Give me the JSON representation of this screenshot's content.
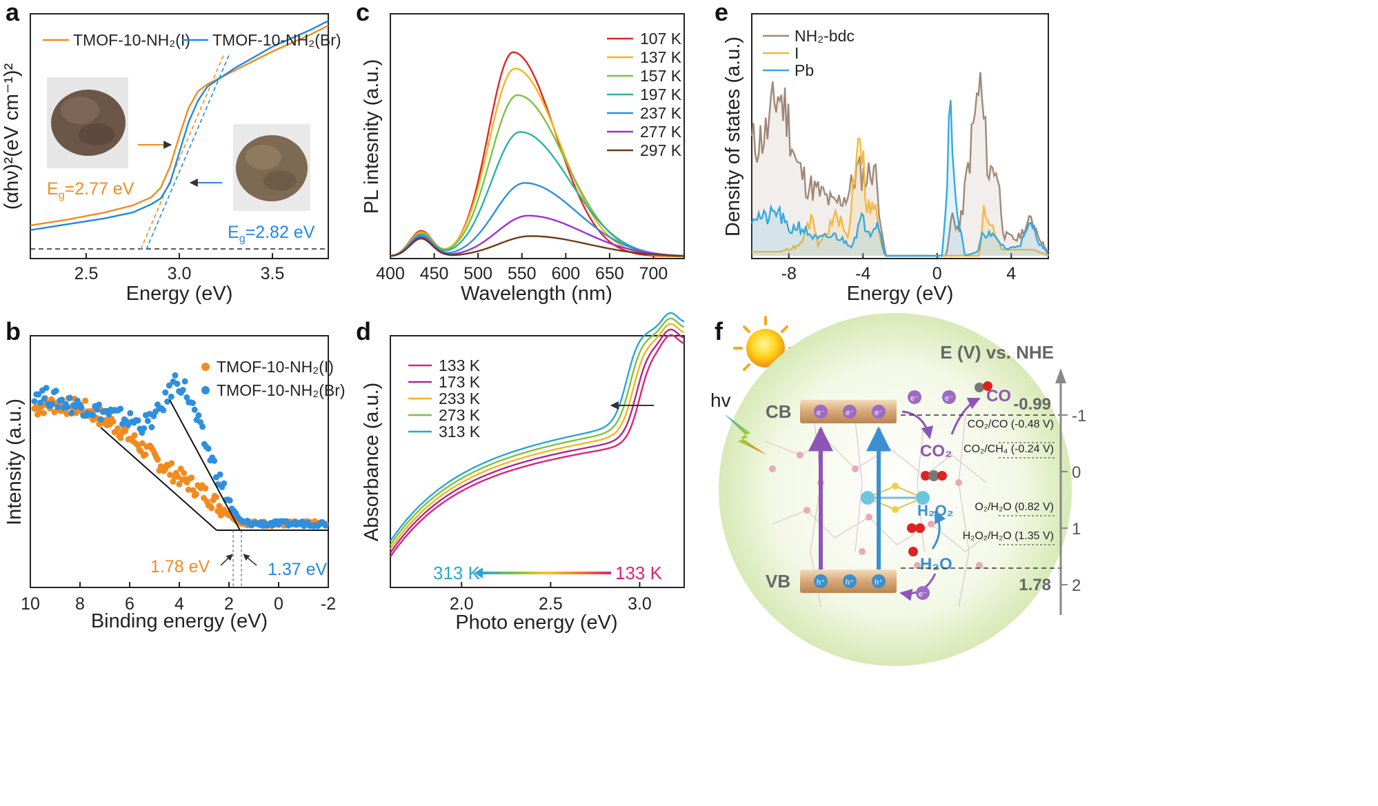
{
  "chart_data": [
    {
      "panel": "a",
      "type": "line",
      "xlabel": "Energy (eV)",
      "ylabel": "(αhν)²(eV cm⁻¹)²",
      "xlim": [
        2.2,
        3.8
      ],
      "ylim": [
        0,
        100
      ],
      "xticks": [
        "2.5",
        "3.0",
        "3.5"
      ],
      "xtick_values": [
        2.5,
        3.0,
        3.5
      ],
      "legend_position": "top",
      "colors": {
        "I": "#f28a1e",
        "Br": "#1e88e5"
      },
      "series": [
        {
          "name": "TMOF-10-NH₂(I)",
          "x": [
            2.2,
            2.4,
            2.6,
            2.75,
            2.85,
            2.9,
            2.95,
            3.0,
            3.05,
            3.1,
            3.15,
            3.3,
            3.5,
            3.7,
            3.8
          ],
          "y": [
            10,
            12.5,
            15.5,
            18.5,
            22,
            26,
            35,
            48,
            60,
            67,
            70,
            76,
            84,
            91,
            95
          ]
        },
        {
          "name": "TMOF-10-NH₂(Br)",
          "x": [
            2.2,
            2.4,
            2.6,
            2.75,
            2.85,
            2.9,
            2.95,
            3.0,
            3.05,
            3.1,
            3.15,
            3.3,
            3.5,
            3.7,
            3.8
          ],
          "y": [
            8,
            10.5,
            13,
            15.5,
            19,
            21.5,
            28,
            41,
            54,
            63,
            69,
            77,
            86,
            93,
            97
          ]
        }
      ],
      "annotations": [
        {
          "prefix": "E",
          "sub": "g",
          "value": "=2.77 eV"
        },
        {
          "prefix": "E",
          "sub": "g",
          "value": "=2.82 eV"
        }
      ]
    },
    {
      "panel": "b",
      "type": "scatter",
      "xlabel": "Binding energy (eV)",
      "ylabel": "Intensity (a.u.)",
      "xlim": [
        10,
        -2
      ],
      "xticks": [
        "10",
        "8",
        "6",
        "4",
        "2",
        "0",
        "-2"
      ],
      "xtick_values": [
        10,
        8,
        6,
        4,
        2,
        0,
        -2
      ],
      "legend_position": "top-right",
      "series": [
        {
          "name": "TMOF-10-NH₂(I)",
          "x": [
            10,
            9.5,
            9,
            8.5,
            8,
            7.5,
            7,
            6.5,
            6,
            5.5,
            5,
            4.5,
            4,
            3.5,
            3,
            2.5,
            2,
            1.5,
            1,
            0.5,
            0,
            -0.5,
            -1,
            -1.5,
            -2
          ],
          "y": [
            64,
            66,
            66,
            65,
            64,
            61,
            58,
            54,
            49,
            44,
            39,
            34,
            30,
            26,
            22,
            17,
            12,
            8,
            7,
            7,
            7,
            7,
            7,
            7,
            7
          ]
        },
        {
          "name": "TMOF-10-NH₂(Br)",
          "x": [
            10,
            9.5,
            9,
            8.5,
            8,
            7.5,
            7,
            6.5,
            6,
            5.5,
            5,
            4.5,
            4.2,
            3.8,
            3.4,
            3,
            2.6,
            2.2,
            1.8,
            1.5,
            1,
            0.5,
            0,
            -0.5,
            -1,
            -1.5,
            -2
          ],
          "y": [
            72,
            70,
            68,
            66,
            65,
            63,
            62,
            60,
            58,
            56,
            60,
            70,
            78,
            74,
            62,
            48,
            36,
            24,
            13,
            8,
            7,
            7,
            7,
            7,
            7,
            7,
            7
          ]
        }
      ],
      "annotations": [
        "1.78 eV",
        "1.37 eV"
      ]
    },
    {
      "panel": "c",
      "type": "line",
      "xlabel": "Wavelength (nm)",
      "ylabel": "PL intesnity (a.u.)",
      "xlim": [
        400,
        735
      ],
      "ylim": [
        0,
        100
      ],
      "xticks": [
        "400",
        "450",
        "500",
        "550",
        "600",
        "650",
        "700"
      ],
      "xtick_values": [
        400,
        450,
        500,
        550,
        600,
        650,
        700
      ],
      "legend_position": "top-right",
      "series": [
        {
          "name": "107 K",
          "color": "#e02525",
          "peak": 100,
          "center": 540
        },
        {
          "name": "137 K",
          "color": "#f5b51b",
          "peak": 92,
          "center": 542
        },
        {
          "name": "157 K",
          "color": "#7cc242",
          "peak": 79,
          "center": 545
        },
        {
          "name": "197 K",
          "color": "#2bb3a0",
          "peak": 61,
          "center": 548
        },
        {
          "name": "237 K",
          "color": "#2e8fe0",
          "peak": 36,
          "center": 553
        },
        {
          "name": "277 K",
          "color": "#9b30d8",
          "peak": 20,
          "center": 557
        },
        {
          "name": "297 K",
          "color": "#6b3a12",
          "peak": 10,
          "center": 560
        }
      ]
    },
    {
      "panel": "d",
      "type": "line",
      "xlabel": "Photo energy (eV)",
      "ylabel": "Absorbance (a.u.)",
      "xlim": [
        1.6,
        3.25
      ],
      "ylim": [
        0,
        100
      ],
      "xticks": [
        "2.0",
        "2.5",
        "3.0"
      ],
      "xtick_values": [
        2.0,
        2.5,
        3.0
      ],
      "legend_position": "top-left",
      "series": [
        {
          "name": "133 K",
          "color": "#e0207a",
          "shift": 0.0
        },
        {
          "name": "173 K",
          "color": "#a8289a",
          "shift": 2.2
        },
        {
          "name": "233 K",
          "color": "#f5b51b",
          "shift": 4.4
        },
        {
          "name": "273 K",
          "color": "#7cc242",
          "shift": 6.6
        },
        {
          "name": "313 K",
          "color": "#29a5d6",
          "shift": 8.8
        }
      ],
      "annotations": [
        "313 K",
        "133 K"
      ]
    },
    {
      "panel": "e",
      "type": "area",
      "xlabel": "Energy (eV)",
      "ylabel": "Density of states (a.u.)",
      "xlim": [
        -10,
        6
      ],
      "ylim": [
        0,
        100
      ],
      "xticks": [
        "-8",
        "-4",
        "0",
        "4"
      ],
      "xtick_values": [
        -8,
        -4,
        0,
        4
      ],
      "legend_position": "top-left",
      "series": [
        {
          "name": "NH₂-bdc",
          "color": "#a08878"
        },
        {
          "name": "I",
          "color": "#f5b840"
        },
        {
          "name": "Pb",
          "color": "#35a8dc"
        }
      ]
    }
  ],
  "panel_f": {
    "axis_title": "E (V) vs. NHE",
    "axis_ticks": [
      "-1",
      "0",
      "1",
      "2"
    ],
    "cb_label": "CB",
    "vb_label": "VB",
    "hv_label": "hv",
    "cb_value": "-0.99",
    "vb_value": "1.78",
    "electron": "e⁻",
    "hole": "h⁺",
    "co2": "CO₂",
    "co": "CO",
    "h2o2": "H₂O₂",
    "h2o": "H₂O",
    "potentials": [
      "CO₂/CO (-0.48 V)",
      "CO₂/CH₄ (-0.24 V)",
      "O₂/H₂O (0.82 V)",
      "H₂O₂/H₂O (1.35 V)"
    ]
  },
  "panel_labels": [
    "a",
    "b",
    "c",
    "d",
    "e",
    "f"
  ]
}
